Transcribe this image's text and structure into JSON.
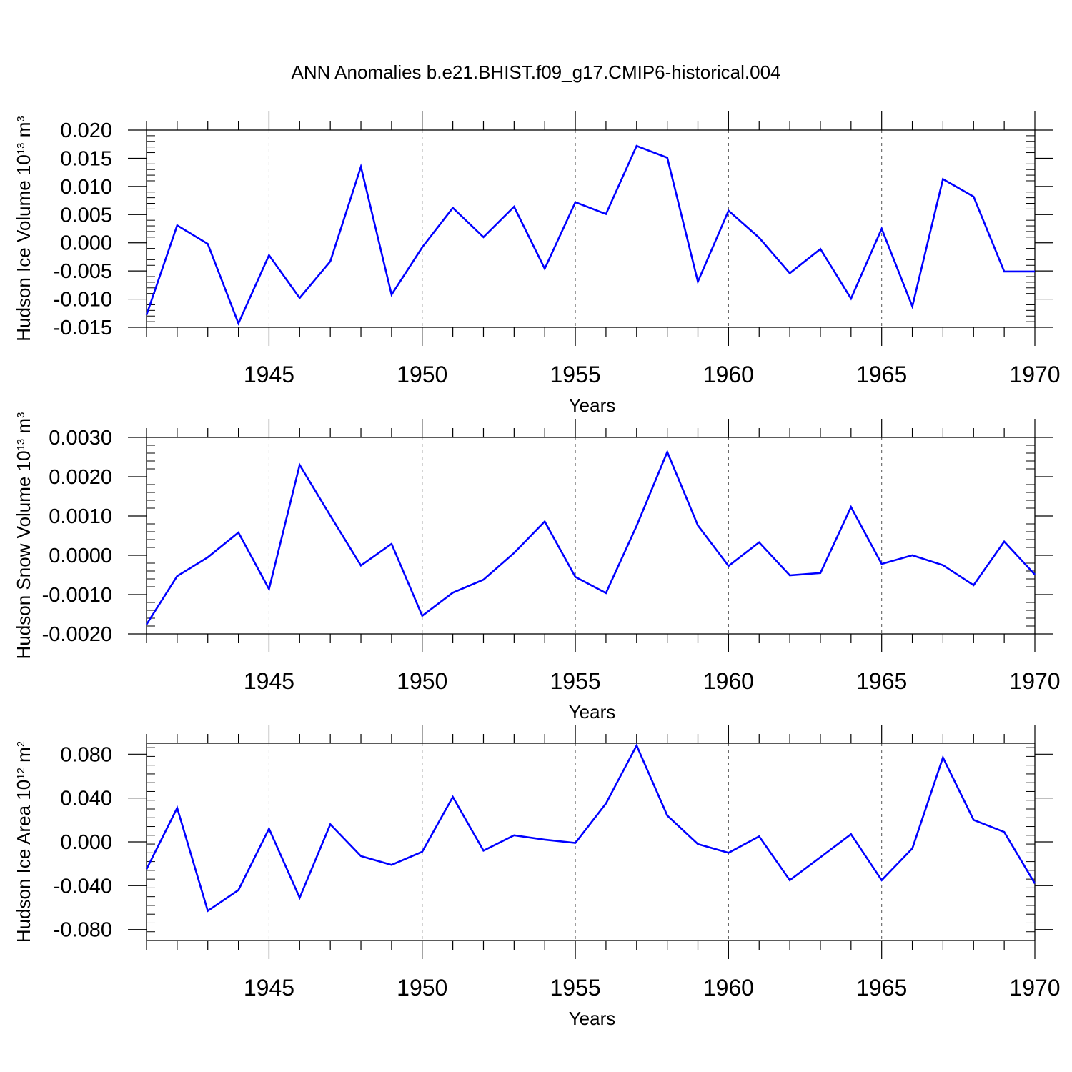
{
  "title": "ANN Anomalies b.e21.BHIST.f09_g17.CMIP6-historical.004",
  "colors": {
    "line": "#0000ff",
    "axis": "#000000",
    "grid": "#555555"
  },
  "chart_data": [
    {
      "type": "line",
      "ylabel": "Hudson Ice Volume 10",
      "ylabel_exp": "13",
      "ylabel_unit": " m",
      "ylabel_unit_exp": "3",
      "xlabel": "Years",
      "xlim": [
        1941,
        1970
      ],
      "ylim": [
        -0.015,
        0.02
      ],
      "yticks": [
        -0.015,
        -0.01,
        -0.005,
        0.0,
        0.005,
        0.01,
        0.015,
        0.02
      ],
      "ytick_labels": [
        "-0.015",
        "-0.010",
        "-0.005",
        "0.000",
        "0.005",
        "0.010",
        "0.015",
        "0.020"
      ],
      "xticks": [
        1945,
        1950,
        1955,
        1960,
        1965,
        1970
      ],
      "xtick_labels": [
        "1945",
        "1950",
        "1955",
        "1960",
        "1965",
        "1970"
      ],
      "grid": "vertical dashed at labeled years",
      "x": [
        1941,
        1942,
        1943,
        1944,
        1945,
        1946,
        1947,
        1948,
        1949,
        1950,
        1951,
        1952,
        1953,
        1954,
        1955,
        1956,
        1957,
        1958,
        1959,
        1960,
        1961,
        1962,
        1963,
        1964,
        1965,
        1966,
        1967,
        1968,
        1969,
        1970
      ],
      "y": [
        -0.0128,
        0.0031,
        -0.0002,
        -0.0143,
        -0.0022,
        -0.0098,
        -0.0033,
        0.0135,
        -0.0092,
        -0.0008,
        0.0062,
        0.001,
        0.0064,
        -0.0046,
        0.0072,
        0.0051,
        0.0172,
        0.0151,
        -0.0069,
        0.0057,
        0.0009,
        -0.0054,
        -0.0011,
        -0.0099,
        0.0025,
        -0.0113,
        0.0113,
        0.0082,
        -0.0051,
        -0.0051
      ]
    },
    {
      "type": "line",
      "ylabel": "Hudson Snow Volume 10",
      "ylabel_exp": "13",
      "ylabel_unit": " m",
      "ylabel_unit_exp": "3",
      "xlabel": "Years",
      "xlim": [
        1941,
        1970
      ],
      "ylim": [
        -0.002,
        0.003
      ],
      "yticks": [
        -0.002,
        -0.001,
        0.0,
        0.001,
        0.002,
        0.003
      ],
      "ytick_labels": [
        "-0.0020",
        "-0.0010",
        "0.0000",
        "0.0010",
        "0.0020",
        "0.0030"
      ],
      "xticks": [
        1945,
        1950,
        1955,
        1960,
        1965,
        1970
      ],
      "xtick_labels": [
        "1945",
        "1950",
        "1955",
        "1960",
        "1965",
        "1970"
      ],
      "grid": "vertical dashed at labeled years",
      "x": [
        1941,
        1942,
        1943,
        1944,
        1945,
        1946,
        1947,
        1948,
        1949,
        1950,
        1951,
        1952,
        1953,
        1954,
        1955,
        1956,
        1957,
        1958,
        1959,
        1960,
        1961,
        1962,
        1963,
        1964,
        1965,
        1966,
        1967,
        1968,
        1969,
        1970
      ],
      "y": [
        -0.00176,
        -0.00053,
        -5e-05,
        0.00058,
        -0.00086,
        0.0023,
        0.00101,
        -0.00026,
        0.00029,
        -0.00154,
        -0.00095,
        -0.00062,
        6e-05,
        0.00086,
        -0.00055,
        -0.00096,
        0.00075,
        0.00263,
        0.00076,
        -0.00027,
        0.00033,
        -0.00051,
        -0.00045,
        0.00123,
        -0.00022,
        0.0,
        -0.00025,
        -0.00076,
        0.00035,
        -0.00049
      ]
    },
    {
      "type": "line",
      "ylabel": "Hudson Ice Area 10",
      "ylabel_exp": "12",
      "ylabel_unit": " m",
      "ylabel_unit_exp": "2",
      "xlabel": "Years",
      "xlim": [
        1941,
        1970
      ],
      "ylim": [
        -0.09,
        0.09
      ],
      "yticks": [
        -0.08,
        -0.04,
        0.0,
        0.04,
        0.08
      ],
      "ytick_labels": [
        "-0.080",
        "-0.040",
        "0.000",
        "0.040",
        "0.080"
      ],
      "xticks": [
        1945,
        1950,
        1955,
        1960,
        1965,
        1970
      ],
      "xtick_labels": [
        "1945",
        "1950",
        "1955",
        "1960",
        "1965",
        "1970"
      ],
      "grid": "vertical dashed at labeled years",
      "x": [
        1941,
        1942,
        1943,
        1944,
        1945,
        1946,
        1947,
        1948,
        1949,
        1950,
        1951,
        1952,
        1953,
        1954,
        1955,
        1956,
        1957,
        1958,
        1959,
        1960,
        1961,
        1962,
        1963,
        1964,
        1965,
        1966,
        1967,
        1968,
        1969,
        1970
      ],
      "y": [
        -0.025,
        0.031,
        -0.063,
        -0.044,
        0.012,
        -0.051,
        0.016,
        -0.013,
        -0.021,
        -0.009,
        0.041,
        -0.008,
        0.006,
        0.002,
        -0.001,
        0.035,
        0.088,
        0.024,
        -0.002,
        -0.01,
        0.005,
        -0.035,
        -0.014,
        0.007,
        -0.035,
        -0.006,
        0.077,
        0.02,
        0.009,
        -0.038
      ]
    }
  ]
}
